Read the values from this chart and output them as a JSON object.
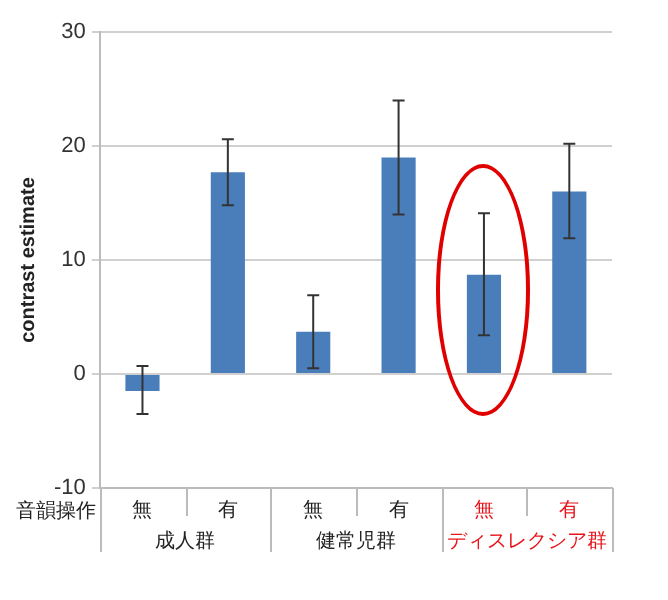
{
  "chart_data": {
    "type": "bar",
    "ylabel": "contrast estimate",
    "categories": [
      "無",
      "有",
      "無",
      "有",
      "無",
      "有"
    ],
    "values": [
      -1.5,
      17.7,
      3.7,
      19,
      8.7,
      16
    ],
    "errors": [
      [
        -3.5,
        0.7
      ],
      [
        14.8,
        20.6
      ],
      [
        0.5,
        6.9
      ],
      [
        14,
        24
      ],
      [
        3.4,
        14.1
      ],
      [
        11.9,
        20.2
      ]
    ],
    "color": "#4a7ebb",
    "ylim": [
      -10,
      30
    ],
    "yticks": [
      -10,
      0,
      10,
      20,
      30
    ],
    "grid": "y",
    "legend": false,
    "annotations": [
      "音韻操作",
      "成人群",
      "健常児群",
      "ディスレクシア群"
    ]
  }
}
